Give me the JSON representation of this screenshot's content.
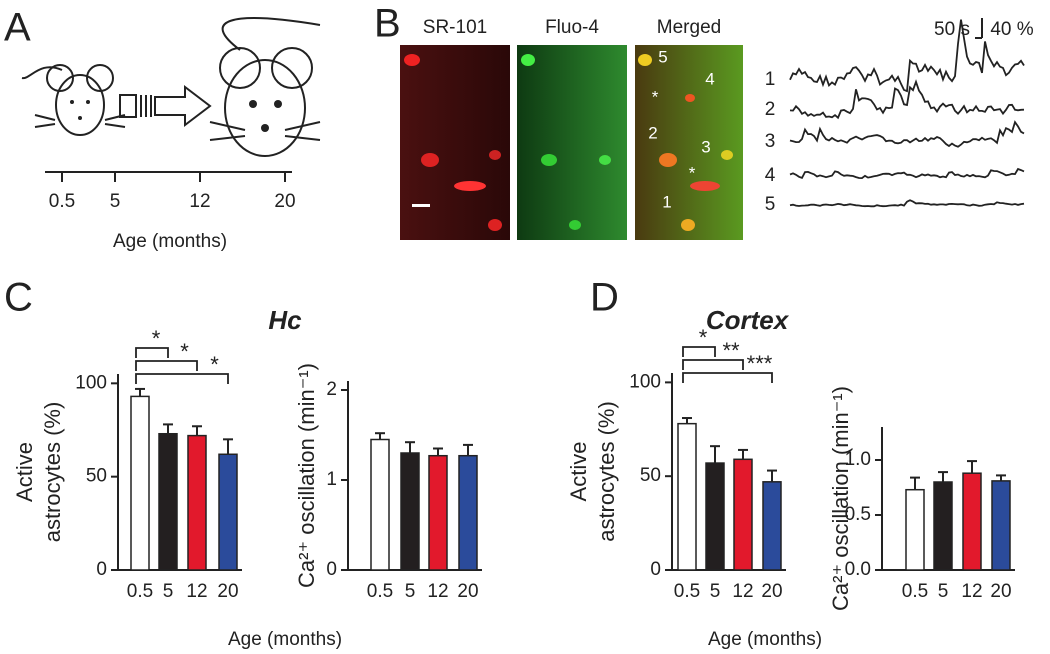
{
  "panel_labels": [
    "A",
    "B",
    "C",
    "D"
  ],
  "timeline": {
    "labels": [
      "0.5",
      "5",
      "12",
      "20"
    ],
    "xlabel": "Age (months)"
  },
  "imaging": {
    "channels": [
      "SR-101",
      "Fluo-4",
      "Merged"
    ],
    "cell_labels": [
      "5",
      "4",
      "*",
      "2",
      "3",
      "*",
      "1"
    ],
    "scale_time": "50 s",
    "scale_amp": "40 %",
    "trace_labels": [
      "1",
      "2",
      "3",
      "4",
      "5"
    ]
  },
  "groups": [
    {
      "title": "Hc",
      "xlabel": "Age (months)"
    },
    {
      "title": "Cortex",
      "xlabel": "Age (months)"
    }
  ],
  "chart_data": [
    {
      "type": "bar",
      "categories": [
        "0.5",
        "5",
        "12",
        "20"
      ],
      "values": [
        93,
        73,
        72,
        62
      ],
      "errors": [
        4,
        5,
        5,
        8
      ],
      "colors": [
        "#ffffff",
        "#231f20",
        "#e2192c",
        "#2b4b9b"
      ],
      "ylabel": [
        "Active",
        "astrocytes (%)"
      ],
      "ylim": [
        0,
        105
      ],
      "yticks": [
        0,
        50,
        100
      ],
      "significance": [
        "*",
        "*",
        "*"
      ]
    },
    {
      "type": "bar",
      "categories": [
        "0.5",
        "5",
        "12",
        "20"
      ],
      "values": [
        1.45,
        1.3,
        1.27,
        1.27
      ],
      "errors": [
        0.07,
        0.12,
        0.08,
        0.12
      ],
      "colors": [
        "#ffffff",
        "#231f20",
        "#e2192c",
        "#2b4b9b"
      ],
      "ylabel": [
        "Ca²⁺ oscillation (min⁻¹)"
      ],
      "ylim": [
        0,
        2.1
      ],
      "yticks": [
        0,
        1,
        2
      ]
    },
    {
      "type": "bar",
      "categories": [
        "0.5",
        "5",
        "12",
        "20"
      ],
      "values": [
        78,
        57,
        59,
        47
      ],
      "errors": [
        3,
        9,
        5,
        6
      ],
      "colors": [
        "#ffffff",
        "#231f20",
        "#e2192c",
        "#2b4b9b"
      ],
      "ylabel": [
        "Active",
        "astrocytes (%)"
      ],
      "ylim": [
        0,
        105
      ],
      "yticks": [
        0,
        50,
        100
      ],
      "significance": [
        "*",
        "**",
        "***"
      ]
    },
    {
      "type": "bar",
      "categories": [
        "0.5",
        "5",
        "12",
        "20"
      ],
      "values": [
        0.73,
        0.8,
        0.88,
        0.81
      ],
      "errors": [
        0.11,
        0.09,
        0.11,
        0.05
      ],
      "colors": [
        "#ffffff",
        "#231f20",
        "#e2192c",
        "#2b4b9b"
      ],
      "ylabel": [
        "Ca²⁺ oscillation (min⁻¹)"
      ],
      "ylim": [
        0,
        1.3
      ],
      "yticks": [
        {
          "value": 0,
          "label": "0.0"
        },
        {
          "value": 0.5,
          "label": "0.5"
        },
        {
          "value": 1,
          "label": "1.0"
        }
      ]
    }
  ]
}
